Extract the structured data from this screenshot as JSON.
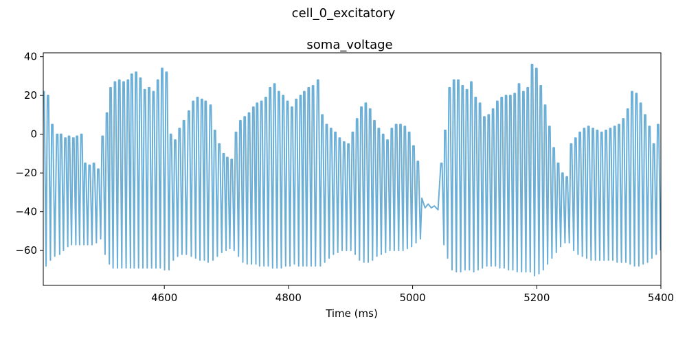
{
  "figure_title": "cell_0_excitatory",
  "chart_data": {
    "type": "line",
    "title": "soma_voltage",
    "xlabel": "Time (ms)",
    "ylabel": "",
    "xlim": [
      4405,
      5400
    ],
    "ylim": [
      -78,
      42
    ],
    "xticks": [
      4600,
      4800,
      5000,
      5200,
      5400
    ],
    "yticks": [
      -60,
      -40,
      -20,
      0,
      20,
      40
    ],
    "grid": false,
    "legend": "none",
    "series": [
      {
        "color": "#6baed6",
        "spikes": [
          [
            4406,
            22,
            -68
          ],
          [
            4413,
            20,
            -65
          ],
          [
            4420,
            5,
            -63
          ],
          [
            4428,
            0,
            -62
          ],
          [
            4434,
            0,
            -60
          ],
          [
            4441,
            -2,
            -58
          ],
          [
            4447,
            -1,
            -57
          ],
          [
            4454,
            -2,
            -57
          ],
          [
            4460,
            -1,
            -57
          ],
          [
            4467,
            0,
            -57
          ],
          [
            4473,
            -15,
            -57
          ],
          [
            4480,
            -16,
            -57
          ],
          [
            4487,
            -15,
            -56
          ],
          [
            4494,
            -18,
            -54
          ],
          [
            4501,
            -1,
            -62
          ],
          [
            4508,
            11,
            -67
          ],
          [
            4514,
            24,
            -69
          ],
          [
            4521,
            27,
            -69
          ],
          [
            4528,
            28,
            -69
          ],
          [
            4535,
            27,
            -69
          ],
          [
            4542,
            28,
            -69
          ],
          [
            4548,
            31,
            -69
          ],
          [
            4555,
            32,
            -69
          ],
          [
            4562,
            29,
            -69
          ],
          [
            4569,
            23,
            -69
          ],
          [
            4576,
            24,
            -69
          ],
          [
            4583,
            22,
            -69
          ],
          [
            4590,
            28,
            -69
          ],
          [
            4597,
            34,
            -70
          ],
          [
            4604,
            32,
            -70
          ],
          [
            4611,
            0,
            -65
          ],
          [
            4618,
            -3,
            -63
          ],
          [
            4625,
            3,
            -62
          ],
          [
            4632,
            7,
            -62
          ],
          [
            4640,
            12,
            -63
          ],
          [
            4647,
            17,
            -64
          ],
          [
            4654,
            19,
            -65
          ],
          [
            4661,
            18,
            -65
          ],
          [
            4667,
            17,
            -66
          ],
          [
            4675,
            15,
            -65
          ],
          [
            4682,
            2,
            -63
          ],
          [
            4689,
            -5,
            -61
          ],
          [
            4696,
            -10,
            -60
          ],
          [
            4702,
            -12,
            -59
          ],
          [
            4709,
            -13,
            -60
          ],
          [
            4716,
            1,
            -63
          ],
          [
            4723,
            7,
            -66
          ],
          [
            4730,
            9,
            -67
          ],
          [
            4737,
            11,
            -67
          ],
          [
            4744,
            14,
            -67
          ],
          [
            4750,
            16,
            -68
          ],
          [
            4757,
            17,
            -68
          ],
          [
            4764,
            19,
            -68
          ],
          [
            4771,
            24,
            -69
          ],
          [
            4778,
            26,
            -69
          ],
          [
            4785,
            22,
            -69
          ],
          [
            4792,
            20,
            -68
          ],
          [
            4799,
            17,
            -68
          ],
          [
            4806,
            14,
            -67
          ],
          [
            4813,
            18,
            -68
          ],
          [
            4820,
            20,
            -68
          ],
          [
            4826,
            22,
            -68
          ],
          [
            4833,
            24,
            -68
          ],
          [
            4840,
            25,
            -68
          ],
          [
            4848,
            28,
            -68
          ],
          [
            4855,
            10,
            -66
          ],
          [
            4862,
            5,
            -64
          ],
          [
            4869,
            3,
            -62
          ],
          [
            4876,
            1,
            -61
          ],
          [
            4883,
            -2,
            -60
          ],
          [
            4890,
            -4,
            -60
          ],
          [
            4897,
            -5,
            -60
          ],
          [
            4904,
            1,
            -62
          ],
          [
            4911,
            8,
            -65
          ],
          [
            4918,
            14,
            -66
          ],
          [
            4925,
            16,
            -66
          ],
          [
            4932,
            13,
            -65
          ],
          [
            4939,
            7,
            -63
          ],
          [
            4946,
            3,
            -62
          ],
          [
            4953,
            0,
            -61
          ],
          [
            4960,
            -3,
            -60
          ],
          [
            4967,
            3,
            -60
          ],
          [
            4974,
            5,
            -60
          ],
          [
            4981,
            5,
            -60
          ],
          [
            4988,
            4,
            -59
          ],
          [
            4995,
            1,
            -58
          ],
          [
            5002,
            -6,
            -56
          ],
          [
            5009,
            -14,
            -54
          ]
        ],
        "quiet": [
          [
            5015,
            -33
          ],
          [
            5020,
            -38
          ],
          [
            5025,
            -36
          ],
          [
            5030,
            -38
          ],
          [
            5035,
            -37
          ],
          [
            5041,
            -39
          ]
        ],
        "spikes2": [
          [
            5047,
            -15,
            -57
          ],
          [
            5053,
            2,
            -64
          ],
          [
            5060,
            24,
            -70
          ],
          [
            5067,
            28,
            -71
          ],
          [
            5074,
            28,
            -71
          ],
          [
            5081,
            25,
            -70
          ],
          [
            5088,
            23,
            -70
          ],
          [
            5095,
            27,
            -71
          ],
          [
            5102,
            19,
            -70
          ],
          [
            5109,
            16,
            -69
          ],
          [
            5116,
            9,
            -68
          ],
          [
            5123,
            10,
            -68
          ],
          [
            5130,
            13,
            -68
          ],
          [
            5137,
            17,
            -69
          ],
          [
            5144,
            19,
            -69
          ],
          [
            5151,
            20,
            -70
          ],
          [
            5158,
            20,
            -70
          ],
          [
            5165,
            21,
            -71
          ],
          [
            5172,
            26,
            -71
          ],
          [
            5179,
            22,
            -71
          ],
          [
            5186,
            24,
            -71
          ],
          [
            5193,
            36,
            -73
          ],
          [
            5200,
            34,
            -72
          ],
          [
            5207,
            25,
            -70
          ],
          [
            5214,
            15,
            -67
          ],
          [
            5221,
            4,
            -64
          ],
          [
            5228,
            -7,
            -61
          ],
          [
            5235,
            -15,
            -58
          ],
          [
            5242,
            -20,
            -56
          ],
          [
            5249,
            -22,
            -56
          ],
          [
            5256,
            -5,
            -60
          ],
          [
            5263,
            -2,
            -62
          ],
          [
            5270,
            1,
            -63
          ],
          [
            5277,
            3,
            -64
          ],
          [
            5284,
            4,
            -65
          ],
          [
            5291,
            3,
            -65
          ],
          [
            5298,
            2,
            -65
          ],
          [
            5305,
            1,
            -65
          ],
          [
            5312,
            2,
            -65
          ],
          [
            5319,
            3,
            -65
          ],
          [
            5326,
            4,
            -66
          ],
          [
            5333,
            5,
            -66
          ],
          [
            5340,
            8,
            -66
          ],
          [
            5347,
            13,
            -67
          ],
          [
            5354,
            22,
            -68
          ],
          [
            5361,
            21,
            -68
          ],
          [
            5368,
            16,
            -67
          ],
          [
            5375,
            10,
            -66
          ],
          [
            5382,
            4,
            -64
          ],
          [
            5389,
            -5,
            -62
          ],
          [
            5396,
            5,
            -60
          ]
        ]
      }
    ]
  }
}
